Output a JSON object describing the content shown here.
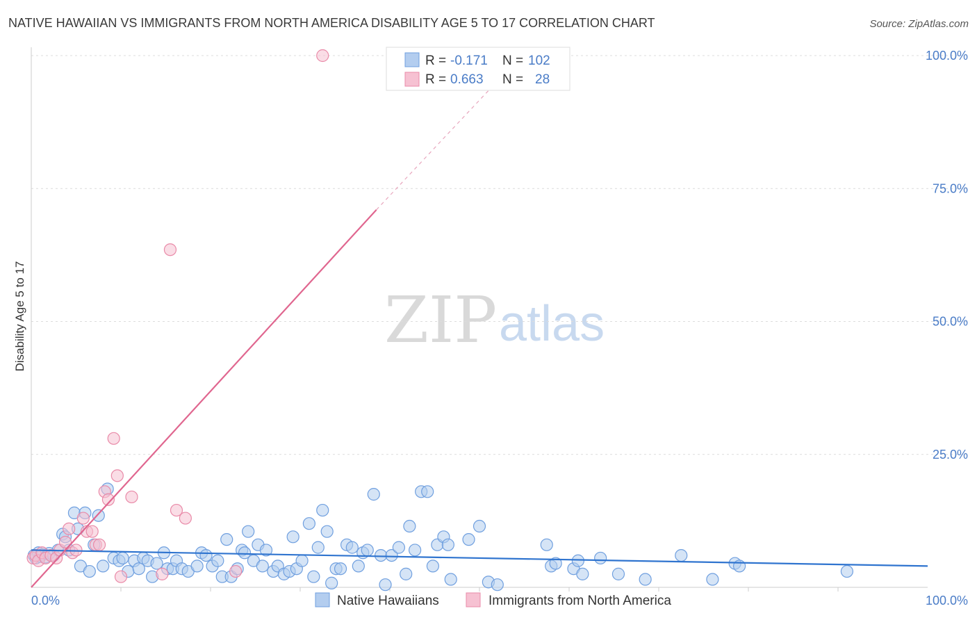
{
  "chart_data": {
    "type": "scatter",
    "title": "NATIVE HAWAIIAN VS IMMIGRANTS FROM NORTH AMERICA DISABILITY AGE 5 TO 17 CORRELATION CHART",
    "source": "Source: ZipAtlas.com",
    "xlabel": "",
    "ylabel": "Disability Age 5 to 17",
    "xlim": [
      0,
      100
    ],
    "ylim": [
      0,
      100
    ],
    "x_tick_labels": [
      "0.0%",
      "100.0%"
    ],
    "y_ticks": [
      25,
      50,
      75,
      100
    ],
    "y_tick_labels": [
      "25.0%",
      "50.0%",
      "75.0%",
      "100.0%"
    ],
    "watermark": {
      "zip": "ZIP",
      "atlas": "atlas"
    },
    "legend": {
      "rows": [
        {
          "r_label": "R =",
          "r_value": "-0.171",
          "n_label": "N =",
          "n_value": "102"
        },
        {
          "r_label": "R =",
          "r_value": "0.663",
          "n_label": "N =",
          "n_value": "28"
        }
      ]
    },
    "series": [
      {
        "name": "Native Hawaiians",
        "color": "#6f9fdf",
        "fill": "#b3cdef",
        "trend_color": "#2f74cf",
        "trend": {
          "x1": 0,
          "y1": 7.0,
          "x2": 100,
          "y2": 4.0
        },
        "points": [
          [
            0.3,
            6.0
          ],
          [
            0.5,
            5.5
          ],
          [
            0.8,
            6.5
          ],
          [
            1.0,
            5.8
          ],
          [
            1.3,
            6.2
          ],
          [
            1.6,
            5.7
          ],
          [
            2.0,
            6.4
          ],
          [
            2.5,
            6.0
          ],
          [
            3.0,
            7.0
          ],
          [
            3.5,
            10.0
          ],
          [
            3.8,
            9.5
          ],
          [
            4.2,
            7.0
          ],
          [
            4.8,
            14.0
          ],
          [
            5.2,
            11.0
          ],
          [
            5.5,
            4.0
          ],
          [
            6.0,
            14.0
          ],
          [
            6.5,
            3.0
          ],
          [
            7.0,
            8.0
          ],
          [
            7.5,
            13.5
          ],
          [
            8.0,
            4.0
          ],
          [
            8.5,
            18.5
          ],
          [
            9.2,
            5.5
          ],
          [
            9.8,
            5.0
          ],
          [
            10.2,
            5.5
          ],
          [
            10.8,
            3.0
          ],
          [
            11.5,
            5.0
          ],
          [
            12.0,
            3.5
          ],
          [
            12.5,
            5.5
          ],
          [
            13.0,
            5.0
          ],
          [
            13.5,
            2.0
          ],
          [
            14.0,
            4.5
          ],
          [
            14.8,
            6.5
          ],
          [
            15.2,
            3.5
          ],
          [
            15.8,
            3.5
          ],
          [
            16.2,
            5.0
          ],
          [
            16.8,
            3.5
          ],
          [
            17.5,
            3.0
          ],
          [
            18.5,
            4.0
          ],
          [
            19.0,
            6.5
          ],
          [
            19.5,
            6.0
          ],
          [
            20.2,
            4.0
          ],
          [
            20.8,
            5.0
          ],
          [
            21.3,
            2.0
          ],
          [
            21.8,
            9.0
          ],
          [
            22.3,
            2.0
          ],
          [
            23.0,
            3.5
          ],
          [
            23.5,
            7.0
          ],
          [
            23.8,
            6.5
          ],
          [
            24.2,
            10.5
          ],
          [
            24.8,
            5.0
          ],
          [
            25.3,
            8.0
          ],
          [
            25.8,
            4.0
          ],
          [
            26.2,
            7.0
          ],
          [
            27.0,
            3.0
          ],
          [
            27.5,
            4.0
          ],
          [
            28.2,
            2.5
          ],
          [
            28.8,
            3.0
          ],
          [
            29.2,
            9.5
          ],
          [
            29.6,
            3.5
          ],
          [
            30.2,
            5.0
          ],
          [
            31.0,
            12.0
          ],
          [
            31.5,
            2.0
          ],
          [
            32.0,
            7.5
          ],
          [
            32.5,
            14.5
          ],
          [
            33.0,
            10.5
          ],
          [
            33.5,
            0.8
          ],
          [
            34.0,
            3.5
          ],
          [
            34.5,
            3.5
          ],
          [
            35.2,
            8.0
          ],
          [
            35.8,
            7.5
          ],
          [
            36.5,
            4.0
          ],
          [
            37.0,
            6.5
          ],
          [
            37.5,
            7.0
          ],
          [
            38.2,
            17.5
          ],
          [
            39.0,
            6.0
          ],
          [
            39.5,
            0.5
          ],
          [
            40.2,
            6.0
          ],
          [
            41.0,
            7.5
          ],
          [
            41.8,
            2.5
          ],
          [
            42.2,
            11.5
          ],
          [
            42.8,
            7.0
          ],
          [
            43.5,
            18.0
          ],
          [
            44.2,
            18.0
          ],
          [
            44.8,
            4.0
          ],
          [
            45.3,
            8.0
          ],
          [
            46.0,
            9.5
          ],
          [
            46.5,
            8.0
          ],
          [
            46.8,
            1.5
          ],
          [
            48.8,
            9.0
          ],
          [
            50.0,
            11.5
          ],
          [
            51.0,
            1.0
          ],
          [
            52.0,
            0.5
          ],
          [
            57.5,
            8.0
          ],
          [
            58.0,
            4.0
          ],
          [
            58.5,
            4.5
          ],
          [
            60.5,
            3.5
          ],
          [
            61.0,
            5.0
          ],
          [
            61.5,
            2.5
          ],
          [
            63.5,
            5.5
          ],
          [
            65.5,
            2.5
          ],
          [
            68.5,
            1.5
          ],
          [
            72.5,
            6.0
          ],
          [
            76.0,
            1.5
          ],
          [
            78.5,
            4.5
          ],
          [
            79.0,
            4.0
          ],
          [
            91.0,
            3.0
          ]
        ]
      },
      {
        "name": "Immigrants from North America",
        "color": "#e98aa8",
        "fill": "#f6c1d2",
        "trend_color": "#e0668f",
        "trend": {
          "x1": 0,
          "y1": 0,
          "x2": 38.5,
          "y2": 71.0
        },
        "trend_dash": {
          "x1": 38.5,
          "y1": 71.0,
          "x2": 53.0,
          "y2": 97.0
        },
        "points": [
          [
            0.2,
            5.5
          ],
          [
            0.5,
            6.0
          ],
          [
            0.8,
            5.0
          ],
          [
            1.2,
            6.5
          ],
          [
            1.6,
            5.5
          ],
          [
            2.2,
            6.0
          ],
          [
            2.8,
            5.5
          ],
          [
            3.2,
            7.0
          ],
          [
            3.8,
            8.5
          ],
          [
            4.2,
            11.0
          ],
          [
            4.6,
            6.5
          ],
          [
            5.0,
            7.0
          ],
          [
            5.8,
            13.0
          ],
          [
            6.2,
            10.5
          ],
          [
            6.8,
            10.5
          ],
          [
            7.2,
            8.0
          ],
          [
            7.6,
            8.0
          ],
          [
            8.2,
            18.0
          ],
          [
            8.6,
            16.5
          ],
          [
            9.2,
            28.0
          ],
          [
            9.6,
            21.0
          ],
          [
            10.0,
            2.0
          ],
          [
            11.2,
            17.0
          ],
          [
            14.6,
            2.5
          ],
          [
            15.5,
            63.5
          ],
          [
            16.2,
            14.5
          ],
          [
            17.2,
            13.0
          ],
          [
            22.8,
            3.0
          ],
          [
            32.5,
            100.0
          ]
        ]
      }
    ]
  }
}
